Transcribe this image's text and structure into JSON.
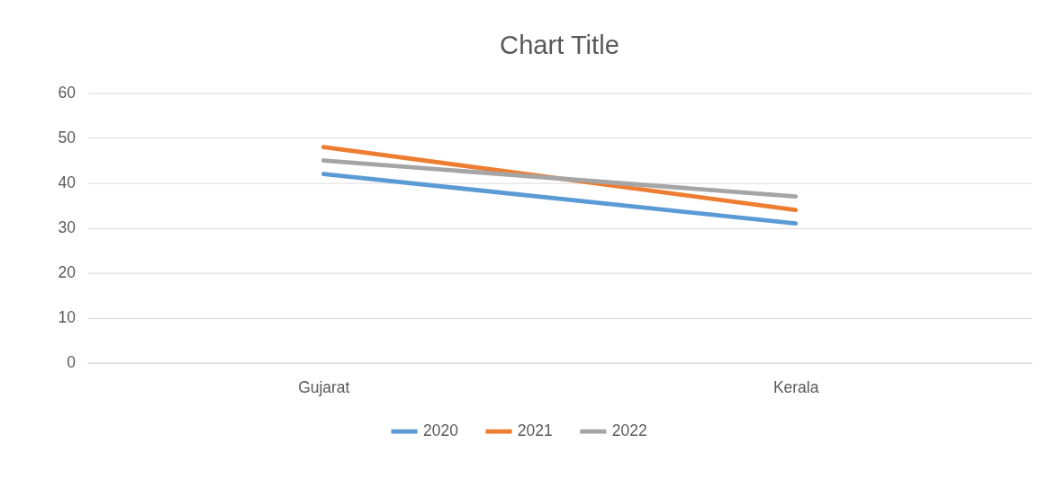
{
  "chart_data": {
    "type": "line",
    "title": "Chart Title",
    "categories": [
      "Gujarat",
      "Kerala"
    ],
    "series": [
      {
        "name": "2020",
        "color": "#5b9bd5",
        "values": [
          42,
          31
        ]
      },
      {
        "name": "2021",
        "color": "#ed7d31",
        "values": [
          48,
          34
        ]
      },
      {
        "name": "2022",
        "color": "#a5a5a5",
        "values": [
          45,
          37
        ]
      }
    ],
    "ylim": [
      0,
      60
    ],
    "yticks": [
      0,
      10,
      20,
      30,
      40,
      50,
      60
    ],
    "grid": "y",
    "legend": "bottom",
    "line_style": "solid"
  }
}
